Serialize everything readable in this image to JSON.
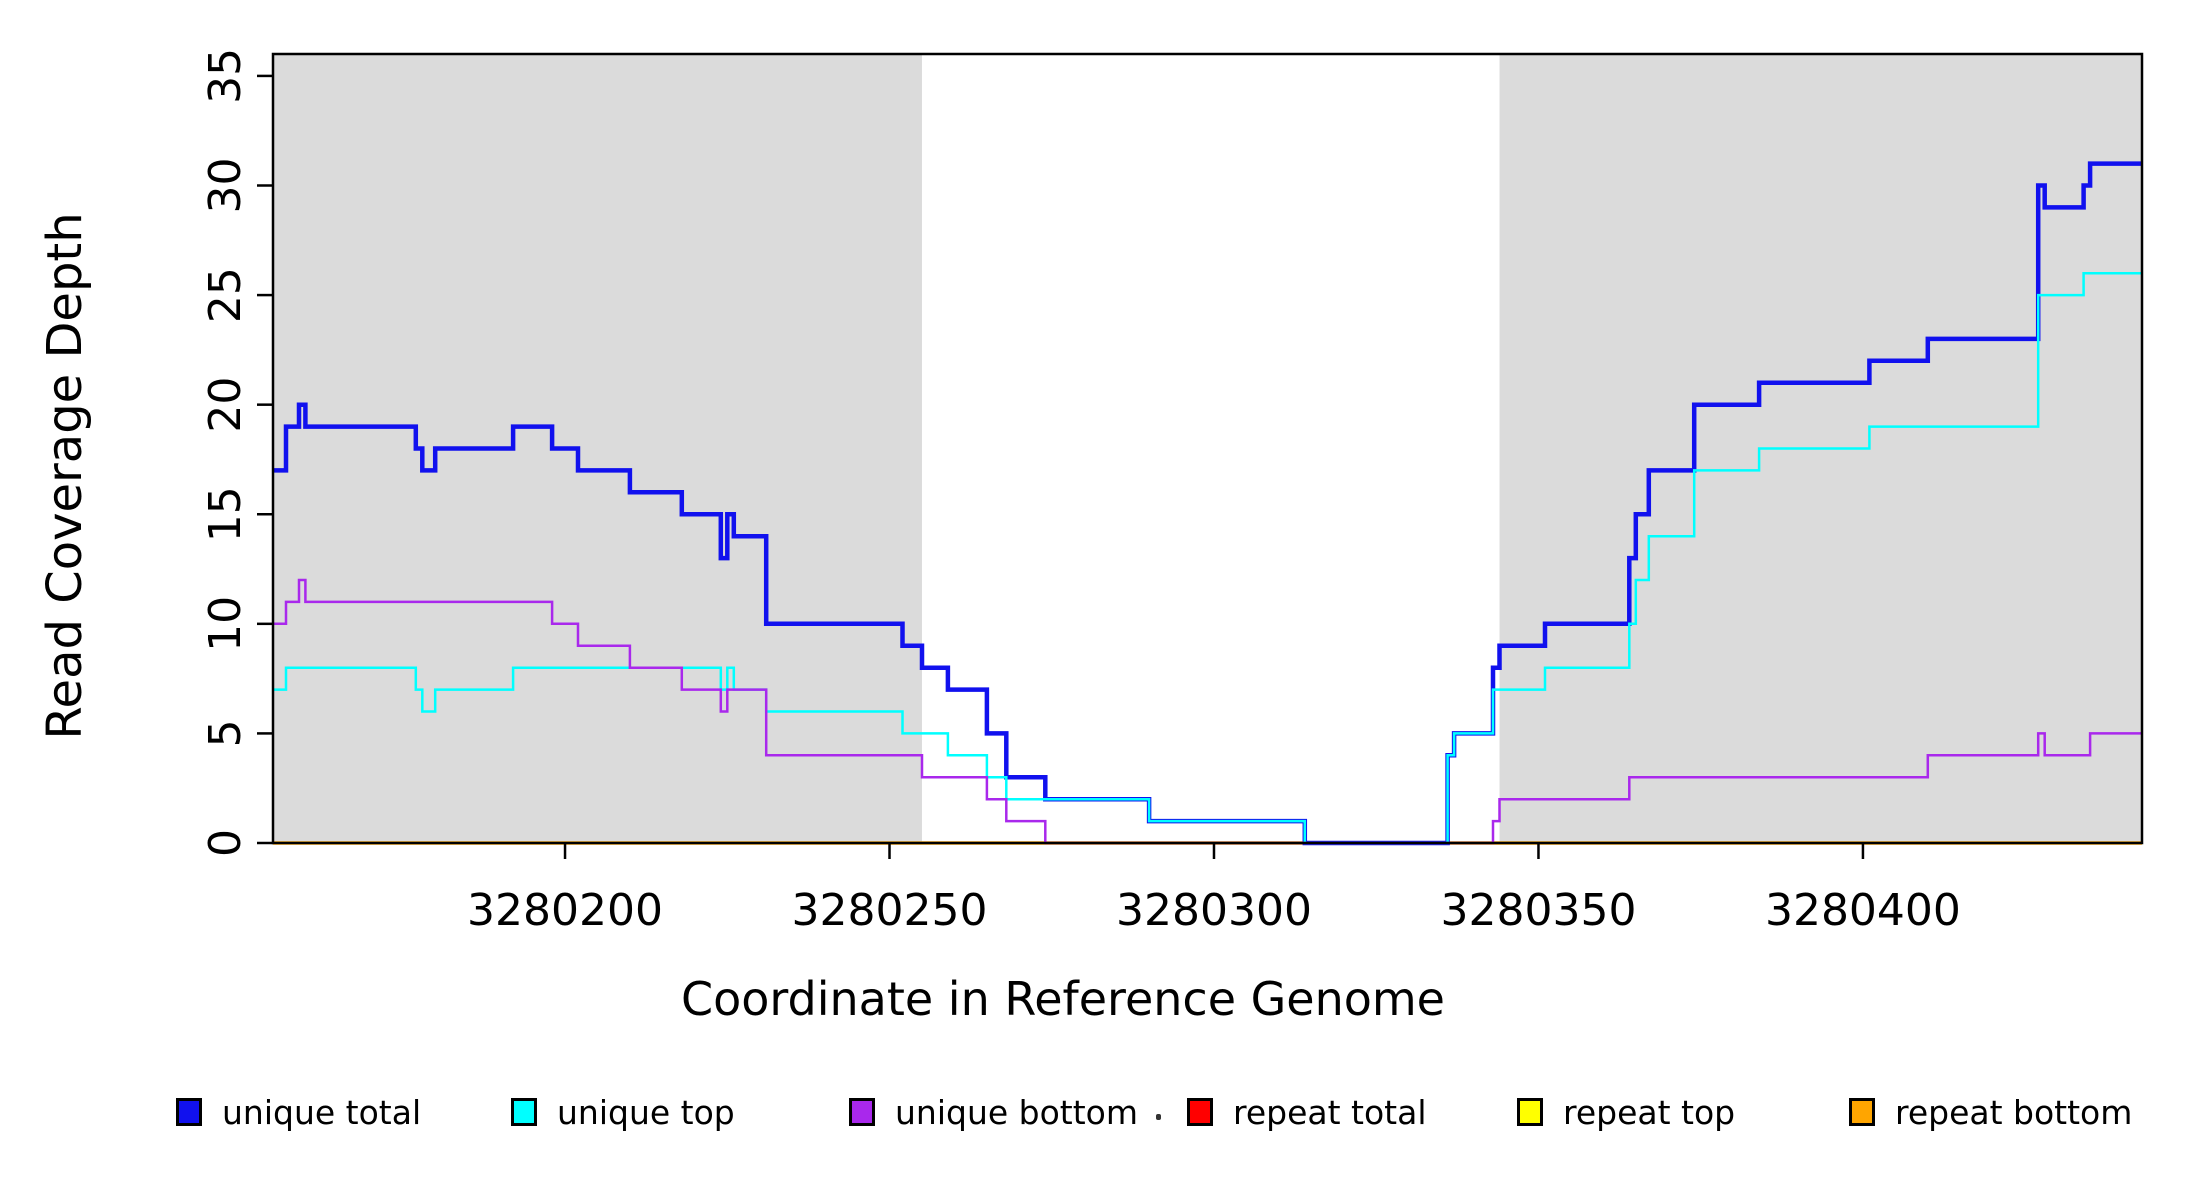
{
  "axes": {
    "y_label": "Read Coverage Depth",
    "x_label": "Coordinate in Reference Genome"
  },
  "chart_data": {
    "type": "line",
    "step": "after",
    "title": "",
    "xlabel": "Coordinate in Reference Genome",
    "ylabel": "Read Coverage Depth",
    "xlim": [
      3280155,
      3280443
    ],
    "ylim": [
      0,
      36
    ],
    "x_ticks": [
      3280200,
      3280250,
      3280300,
      3280350,
      3280400
    ],
    "y_ticks": [
      0,
      5,
      10,
      15,
      20,
      25,
      30,
      35
    ],
    "grid": false,
    "background_color": "#ffffff",
    "shaded_regions": [
      {
        "x0": 3280155,
        "x1": 3280255,
        "color": "#DBDBDB"
      },
      {
        "x0": 3280344,
        "x1": 3280443,
        "color": "#DBDBDB"
      }
    ],
    "series": [
      {
        "name": "repeat total",
        "color": "#FF0000",
        "width": 3,
        "points": [
          [
            3280155,
            0
          ],
          [
            3280443,
            0
          ]
        ]
      },
      {
        "name": "repeat top",
        "color": "#FFFF00",
        "width": 3,
        "points": [
          [
            3280155,
            0
          ],
          [
            3280443,
            0
          ]
        ]
      },
      {
        "name": "repeat bottom",
        "color": "#FFA500",
        "width": 3.5,
        "points": [
          [
            3280155,
            0
          ],
          [
            3280443,
            0
          ]
        ]
      },
      {
        "name": "unique total",
        "color": "#1111EE",
        "width": 4.5,
        "points": [
          [
            3280155,
            17
          ],
          [
            3280157,
            19
          ],
          [
            3280159,
            20
          ],
          [
            3280160,
            19
          ],
          [
            3280177,
            18
          ],
          [
            3280178,
            17
          ],
          [
            3280180,
            18
          ],
          [
            3280192,
            19
          ],
          [
            3280198,
            18
          ],
          [
            3280202,
            17
          ],
          [
            3280210,
            16
          ],
          [
            3280218,
            15
          ],
          [
            3280224,
            13
          ],
          [
            3280225,
            15
          ],
          [
            3280226,
            14
          ],
          [
            3280231,
            10
          ],
          [
            3280252,
            9
          ],
          [
            3280255,
            8
          ],
          [
            3280259,
            7
          ],
          [
            3280265,
            5
          ],
          [
            3280268,
            3
          ],
          [
            3280274,
            2
          ],
          [
            3280290,
            1
          ],
          [
            3280314,
            0
          ],
          [
            3280336,
            4
          ],
          [
            3280337,
            5
          ],
          [
            3280343,
            8
          ],
          [
            3280344,
            9
          ],
          [
            3280351,
            10
          ],
          [
            3280364,
            13
          ],
          [
            3280365,
            15
          ],
          [
            3280367,
            17
          ],
          [
            3280374,
            20
          ],
          [
            3280384,
            21
          ],
          [
            3280401,
            22
          ],
          [
            3280410,
            23
          ],
          [
            3280427,
            30
          ],
          [
            3280428,
            29
          ],
          [
            3280434,
            30
          ],
          [
            3280435,
            31
          ],
          [
            3280443,
            31
          ]
        ]
      },
      {
        "name": "unique top",
        "color": "#00FFFF",
        "width": 2.5,
        "points": [
          [
            3280155,
            7
          ],
          [
            3280157,
            8
          ],
          [
            3280177,
            7
          ],
          [
            3280178,
            6
          ],
          [
            3280180,
            7
          ],
          [
            3280192,
            8
          ],
          [
            3280224,
            7
          ],
          [
            3280225,
            8
          ],
          [
            3280226,
            7
          ],
          [
            3280231,
            6
          ],
          [
            3280252,
            5
          ],
          [
            3280259,
            4
          ],
          [
            3280265,
            3
          ],
          [
            3280268,
            2
          ],
          [
            3280290,
            1
          ],
          [
            3280314,
            0
          ],
          [
            3280336,
            4
          ],
          [
            3280337,
            5
          ],
          [
            3280343,
            7
          ],
          [
            3280351,
            8
          ],
          [
            3280364,
            10
          ],
          [
            3280365,
            12
          ],
          [
            3280367,
            14
          ],
          [
            3280374,
            17
          ],
          [
            3280384,
            18
          ],
          [
            3280401,
            19
          ],
          [
            3280427,
            25
          ],
          [
            3280434,
            26
          ],
          [
            3280443,
            26
          ]
        ]
      },
      {
        "name": "unique bottom",
        "color": "#A928EC",
        "width": 2.5,
        "points": [
          [
            3280155,
            10
          ],
          [
            3280157,
            11
          ],
          [
            3280159,
            12
          ],
          [
            3280160,
            11
          ],
          [
            3280198,
            10
          ],
          [
            3280202,
            9
          ],
          [
            3280210,
            8
          ],
          [
            3280218,
            7
          ],
          [
            3280224,
            6
          ],
          [
            3280225,
            7
          ],
          [
            3280231,
            4
          ],
          [
            3280255,
            3
          ],
          [
            3280265,
            2
          ],
          [
            3280268,
            1
          ],
          [
            3280274,
            0
          ],
          [
            3280343,
            1
          ],
          [
            3280344,
            2
          ],
          [
            3280364,
            3
          ],
          [
            3280410,
            4
          ],
          [
            3280427,
            5
          ],
          [
            3280428,
            4
          ],
          [
            3280435,
            5
          ],
          [
            3280443,
            5
          ]
        ]
      }
    ],
    "legend_position": "bottom"
  },
  "legend": {
    "items": [
      {
        "label": "unique total",
        "color": "#1111EE"
      },
      {
        "label": "unique top",
        "color": "#00FFFF"
      },
      {
        "label": "unique bottom",
        "color": "#A928EC"
      },
      {
        "label": "repeat total",
        "color": "#FF0000"
      },
      {
        "label": "repeat top",
        "color": "#FFFF00"
      },
      {
        "label": "repeat bottom",
        "color": "#FFA500"
      }
    ],
    "stray_mark": "."
  }
}
